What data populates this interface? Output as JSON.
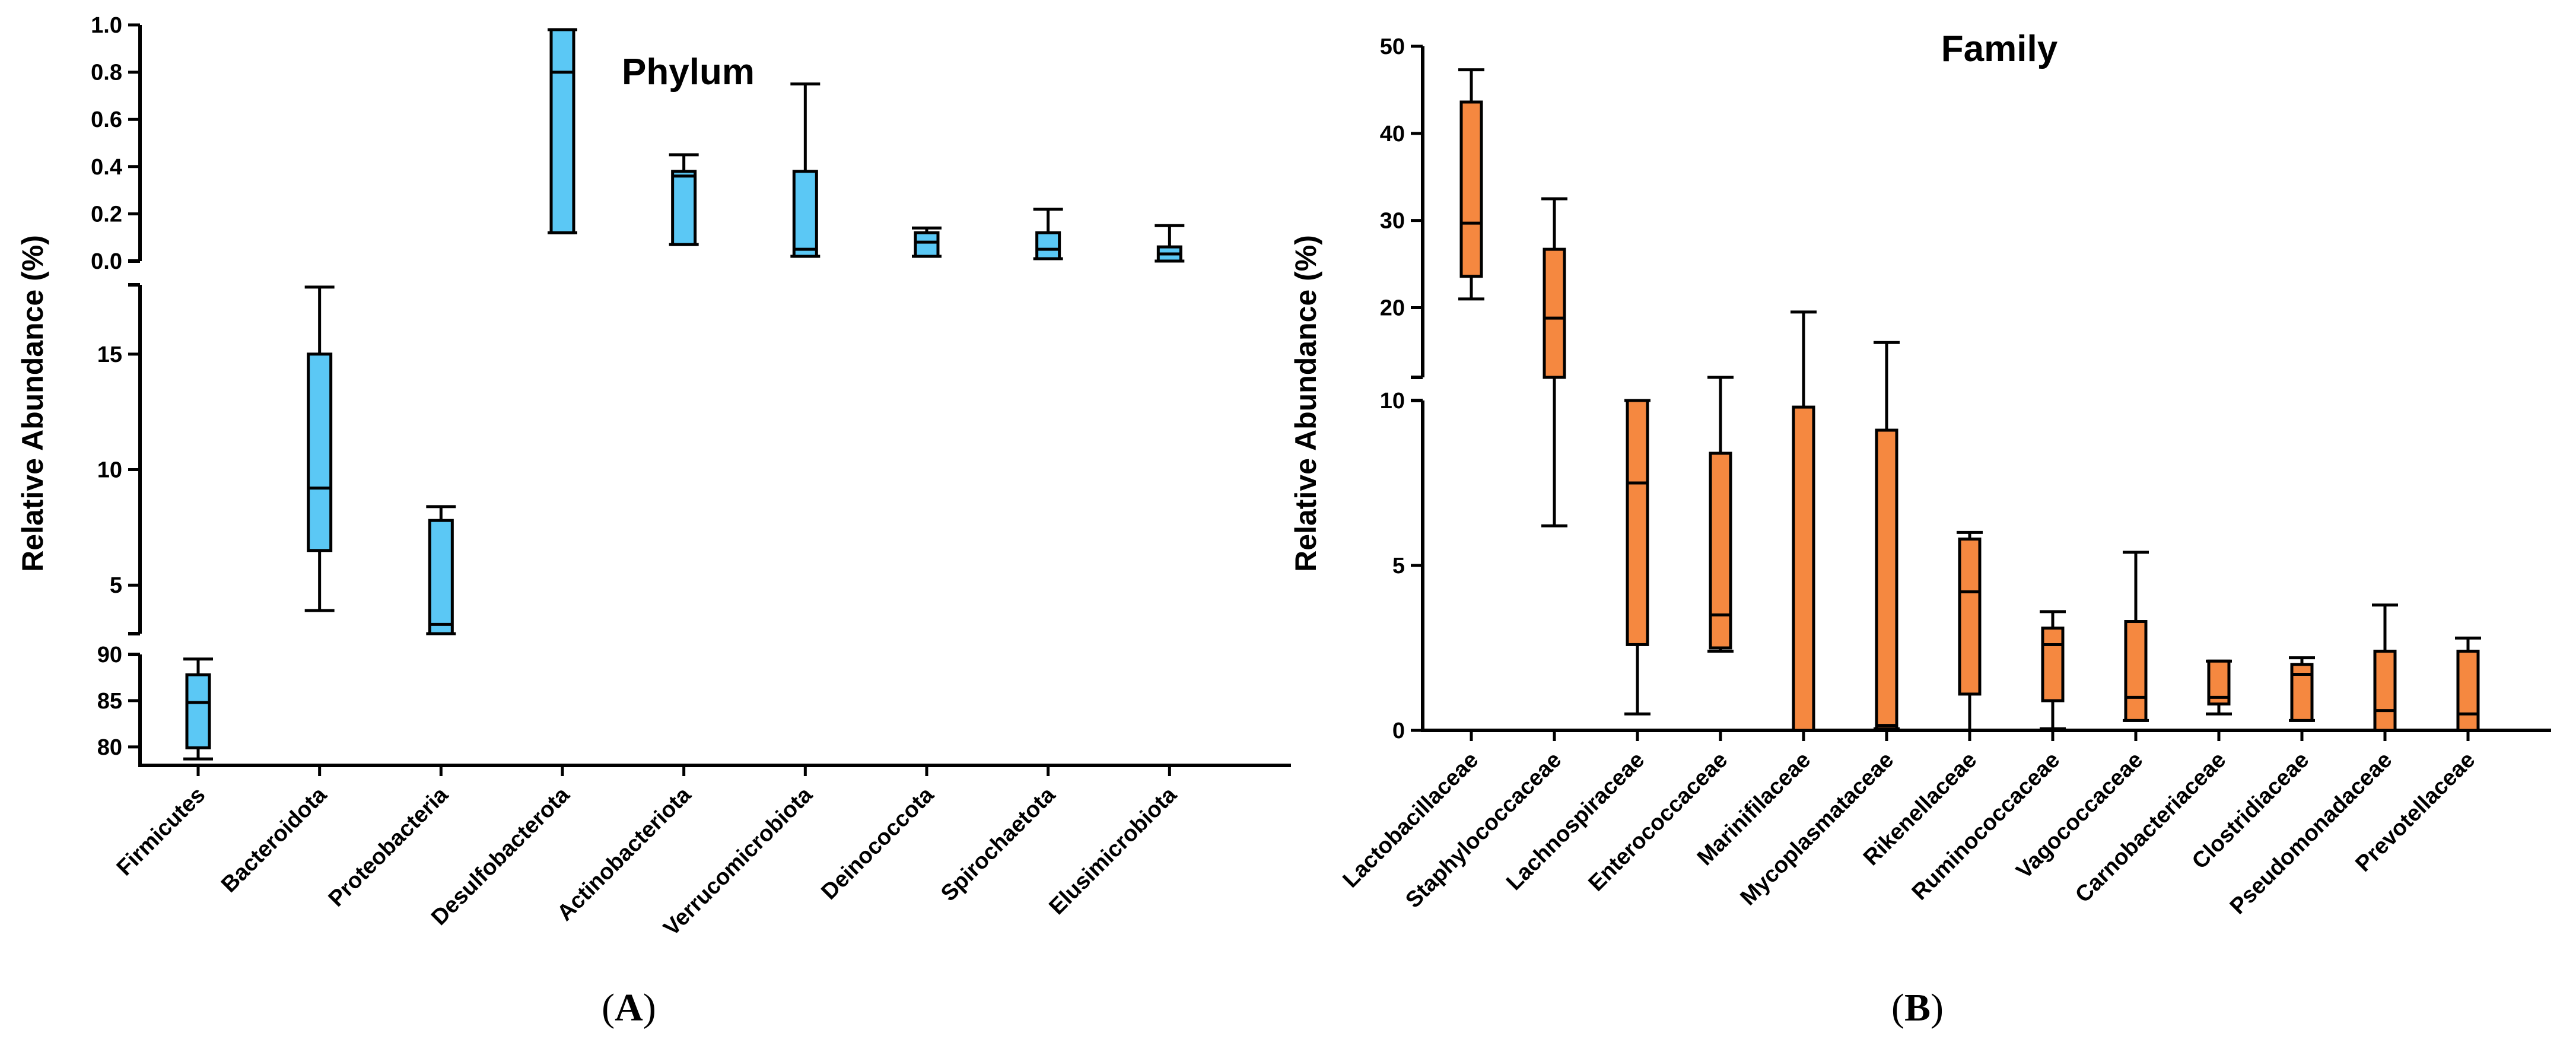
{
  "chart_data": [
    {
      "type": "boxplot",
      "panel": "A",
      "title": "Phylum",
      "ylabel": "Relative Abundance (%)",
      "xlabel": "",
      "fill": "#5BC8F5",
      "y_segments": [
        {
          "range": [
            78,
            90
          ],
          "ticks": [
            80,
            85,
            90
          ]
        },
        {
          "range": [
            2.9,
            18
          ],
          "ticks": [
            5,
            10,
            15
          ]
        },
        {
          "range": [
            0,
            1.0
          ],
          "ticks": [
            0.0,
            0.2,
            0.4,
            0.6,
            0.8,
            1.0
          ]
        }
      ],
      "y_tick_labels": {
        "0": [
          "80",
          "85",
          "90"
        ],
        "1": [
          "5",
          "10",
          "15"
        ],
        "2": [
          "0.0",
          "0.2",
          "0.4",
          "0.6",
          "0.8",
          "1.0"
        ]
      },
      "categories": [
        "Firmicutes",
        "Bacteroidota",
        "Proteobacteria",
        "Desulfobacterota",
        "Actinobacteriota",
        "Verrucomicrobiota",
        "Deinococcota",
        "Spirochaetota",
        "Elusimicrobiota"
      ],
      "boxes": [
        {
          "min": 78.7,
          "q1": 79.9,
          "median": 84.8,
          "q3": 87.8,
          "max": 89.5
        },
        {
          "min": 3.9,
          "q1": 6.5,
          "median": 9.2,
          "q3": 15.0,
          "max": 17.9
        },
        {
          "min": 2.9,
          "q1": 2.9,
          "median": 3.3,
          "q3": 7.8,
          "max": 8.4
        },
        {
          "min": 0.12,
          "q1": 0.12,
          "median": 0.8,
          "q3": 0.98,
          "max": 0.98
        },
        {
          "min": 0.07,
          "q1": 0.07,
          "median": 0.36,
          "q3": 0.38,
          "max": 0.45
        },
        {
          "min": 0.02,
          "q1": 0.02,
          "median": 0.05,
          "q3": 0.38,
          "max": 0.75
        },
        {
          "min": 0.02,
          "q1": 0.02,
          "median": 0.08,
          "q3": 0.12,
          "max": 0.14
        },
        {
          "min": 0.01,
          "q1": 0.01,
          "median": 0.05,
          "q3": 0.12,
          "max": 0.22
        },
        {
          "min": 0.0,
          "q1": 0.0,
          "median": 0.03,
          "q3": 0.06,
          "max": 0.15
        }
      ]
    },
    {
      "type": "boxplot",
      "panel": "B",
      "title": "Family",
      "ylabel": "Relative Abundance (%)",
      "xlabel": "",
      "fill": "#F58840",
      "y_segments": [
        {
          "range": [
            0,
            10
          ],
          "ticks": [
            0,
            5,
            10
          ]
        },
        {
          "range": [
            12,
            50
          ],
          "ticks": [
            20,
            30,
            40,
            50
          ]
        }
      ],
      "y_tick_labels": {
        "0": [
          "0",
          "5",
          "10"
        ],
        "1": [
          "20",
          "30",
          "40",
          "50"
        ]
      },
      "categories": [
        "Lactobacillaceae",
        "Staphylococcaceae",
        "Lachnospiraceae",
        "Enterococcaceae",
        "Marinifilaceae",
        "Mycoplasmataceae",
        "Rikenellaceae",
        "Ruminococcaceae",
        "Vagococcaceae",
        "Carnobacteriaceae",
        "Clostridiaceae",
        "Pseudomonadaceae",
        "Prevotellaceae"
      ],
      "boxes": [
        {
          "min": 21.0,
          "q1": 23.6,
          "median": 29.7,
          "q3": 43.6,
          "max": 47.3
        },
        {
          "min": 6.2,
          "q1": 12.0,
          "median": 18.8,
          "q3": 26.7,
          "max": 32.5
        },
        {
          "min": 0.5,
          "q1": 2.6,
          "median": 7.5,
          "q3": 10.0,
          "max": 10.9
        },
        {
          "min": 2.4,
          "q1": 2.5,
          "median": 3.5,
          "q3": 8.4,
          "max": 11.1
        },
        {
          "min": 0.0,
          "q1": 0.0,
          "median": 0.0,
          "q3": 9.8,
          "max": 19.5
        },
        {
          "min": 0.05,
          "q1": 0.05,
          "median": 0.15,
          "q3": 9.1,
          "max": 16.0
        },
        {
          "min": 0.0,
          "q1": 1.1,
          "median": 4.2,
          "q3": 5.8,
          "max": 6.0
        },
        {
          "min": 0.05,
          "q1": 0.9,
          "median": 2.6,
          "q3": 3.1,
          "max": 3.6
        },
        {
          "min": 0.3,
          "q1": 0.3,
          "median": 1.0,
          "q3": 3.3,
          "max": 5.4
        },
        {
          "min": 0.5,
          "q1": 0.8,
          "median": 1.0,
          "q3": 2.1,
          "max": 2.1
        },
        {
          "min": 0.3,
          "q1": 0.3,
          "median": 1.7,
          "q3": 2.0,
          "max": 2.2
        },
        {
          "min": 0.0,
          "q1": 0.0,
          "median": 0.6,
          "q3": 2.4,
          "max": 3.8
        },
        {
          "min": 0.0,
          "q1": 0.0,
          "median": 0.5,
          "q3": 2.4,
          "max": 2.8
        }
      ]
    }
  ],
  "captions": {
    "A": {
      "open": "(",
      "letter": "A",
      "close": ")"
    },
    "B": {
      "open": "(",
      "letter": "B",
      "close": ")"
    }
  }
}
